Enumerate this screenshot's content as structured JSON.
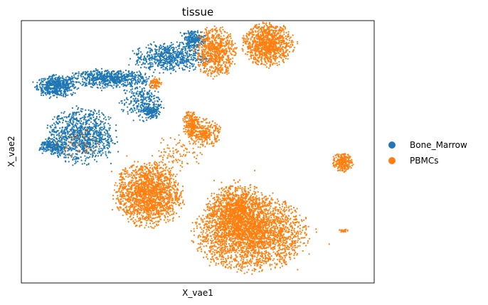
{
  "chart_data": {
    "type": "scatter",
    "title": "tissue",
    "xlabel": "X_vae1",
    "ylabel": "X_vae2",
    "grid": false,
    "ticks": false,
    "legend_position": "right",
    "series": [
      {
        "name": "Bone_Marrow",
        "color": "#1f77b4",
        "clusters": [
          {
            "cx": 0.1,
            "cy": 0.75,
            "rx": 0.05,
            "ry": 0.035,
            "n": 520
          },
          {
            "cx": 0.25,
            "cy": 0.78,
            "rx": 0.1,
            "ry": 0.03,
            "n": 650
          },
          {
            "cx": 0.42,
            "cy": 0.86,
            "rx": 0.09,
            "ry": 0.05,
            "n": 620
          },
          {
            "cx": 0.49,
            "cy": 0.93,
            "rx": 0.03,
            "ry": 0.03,
            "n": 220
          },
          {
            "cx": 0.34,
            "cy": 0.69,
            "rx": 0.05,
            "ry": 0.06,
            "n": 280
          },
          {
            "cx": 0.17,
            "cy": 0.56,
            "rx": 0.085,
            "ry": 0.09,
            "n": 1000
          },
          {
            "cx": 0.09,
            "cy": 0.52,
            "rx": 0.035,
            "ry": 0.025,
            "n": 220
          },
          {
            "cx": 0.37,
            "cy": 0.65,
            "rx": 0.02,
            "ry": 0.02,
            "n": 120
          }
        ]
      },
      {
        "name": "PBMCs",
        "color": "#ff7f0e",
        "clusters": [
          {
            "cx": 0.55,
            "cy": 0.88,
            "rx": 0.05,
            "ry": 0.08,
            "n": 700
          },
          {
            "cx": 0.7,
            "cy": 0.91,
            "rx": 0.06,
            "ry": 0.07,
            "n": 1000
          },
          {
            "cx": 0.48,
            "cy": 0.61,
            "rx": 0.02,
            "ry": 0.045,
            "n": 200
          },
          {
            "cx": 0.38,
            "cy": 0.76,
            "rx": 0.015,
            "ry": 0.02,
            "n": 70
          },
          {
            "cx": 0.52,
            "cy": 0.57,
            "rx": 0.04,
            "ry": 0.045,
            "n": 280
          },
          {
            "cx": 0.36,
            "cy": 0.34,
            "rx": 0.08,
            "ry": 0.105,
            "n": 1700
          },
          {
            "cx": 0.65,
            "cy": 0.19,
            "rx": 0.135,
            "ry": 0.12,
            "n": 2700
          },
          {
            "cx": 0.61,
            "cy": 0.28,
            "rx": 0.07,
            "ry": 0.09,
            "n": 900
          },
          {
            "cx": 0.91,
            "cy": 0.46,
            "rx": 0.025,
            "ry": 0.03,
            "n": 240
          },
          {
            "cx": 0.91,
            "cy": 0.2,
            "rx": 0.012,
            "ry": 0.005,
            "n": 22
          },
          {
            "cx": 0.16,
            "cy": 0.53,
            "rx": 0.05,
            "ry": 0.05,
            "n": 40
          },
          {
            "cx": 0.45,
            "cy": 0.5,
            "rx": 0.06,
            "ry": 0.06,
            "n": 90
          }
        ]
      }
    ]
  }
}
